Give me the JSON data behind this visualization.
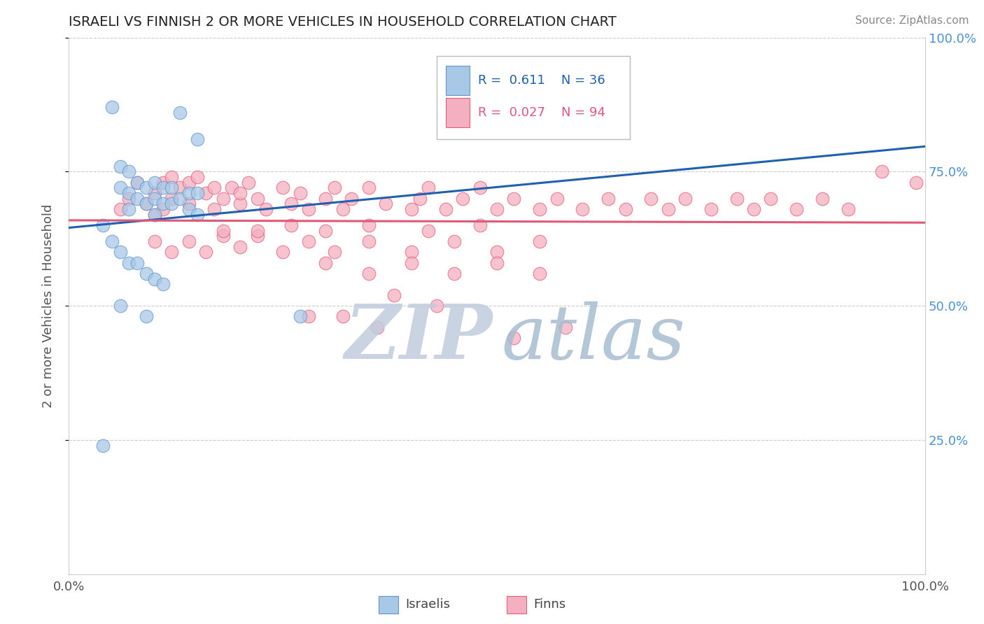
{
  "title": "ISRAELI VS FINNISH 2 OR MORE VEHICLES IN HOUSEHOLD CORRELATION CHART",
  "source": "Source: ZipAtlas.com",
  "ylabel": "2 or more Vehicles in Household",
  "xlim": [
    0.0,
    1.0
  ],
  "ylim": [
    0.0,
    1.0
  ],
  "israeli_R": 0.611,
  "israeli_N": 36,
  "finnish_R": 0.027,
  "finnish_N": 94,
  "israeli_color": "#a8c8e8",
  "finnish_color": "#f4afc0",
  "israeli_edge_color": "#6098c8",
  "finnish_edge_color": "#e06080",
  "israeli_line_color": "#2060b0",
  "finnish_line_color": "#e05878",
  "grid_color": "#cccccc",
  "right_label_color": "#4a90d9",
  "watermark_zip_color": "#c0ccdc",
  "watermark_atlas_color": "#a8bcd0",
  "title_color": "#222222",
  "source_color": "#888888",
  "tick_color": "#555555",
  "ylabel_color": "#555555",
  "legend_edge_color": "#bbbbbb",
  "israeli_x": [
    0.05,
    0.13,
    0.15,
    0.06,
    0.06,
    0.07,
    0.07,
    0.07,
    0.08,
    0.08,
    0.09,
    0.09,
    0.1,
    0.1,
    0.1,
    0.11,
    0.11,
    0.12,
    0.12,
    0.13,
    0.14,
    0.14,
    0.15,
    0.15,
    0.04,
    0.05,
    0.06,
    0.07,
    0.08,
    0.09,
    0.1,
    0.11,
    0.27,
    0.06,
    0.09,
    0.04
  ],
  "israeli_y": [
    0.87,
    0.86,
    0.81,
    0.76,
    0.72,
    0.75,
    0.71,
    0.68,
    0.73,
    0.7,
    0.72,
    0.69,
    0.73,
    0.7,
    0.67,
    0.72,
    0.69,
    0.72,
    0.69,
    0.7,
    0.71,
    0.68,
    0.71,
    0.67,
    0.65,
    0.62,
    0.6,
    0.58,
    0.58,
    0.56,
    0.55,
    0.54,
    0.48,
    0.5,
    0.48,
    0.24
  ],
  "finnish_x": [
    0.06,
    0.07,
    0.08,
    0.09,
    0.1,
    0.1,
    0.11,
    0.11,
    0.12,
    0.12,
    0.13,
    0.14,
    0.14,
    0.15,
    0.16,
    0.17,
    0.17,
    0.18,
    0.19,
    0.2,
    0.2,
    0.21,
    0.22,
    0.23,
    0.25,
    0.26,
    0.27,
    0.28,
    0.3,
    0.31,
    0.32,
    0.33,
    0.35,
    0.37,
    0.4,
    0.41,
    0.42,
    0.44,
    0.46,
    0.48,
    0.5,
    0.52,
    0.55,
    0.57,
    0.6,
    0.63,
    0.65,
    0.68,
    0.7,
    0.72,
    0.75,
    0.78,
    0.8,
    0.82,
    0.85,
    0.88,
    0.91,
    0.95,
    0.99,
    0.1,
    0.12,
    0.14,
    0.16,
    0.18,
    0.2,
    0.22,
    0.25,
    0.28,
    0.31,
    0.35,
    0.4,
    0.45,
    0.5,
    0.55,
    0.3,
    0.35,
    0.4,
    0.45,
    0.5,
    0.55,
    0.18,
    0.22,
    0.26,
    0.3,
    0.35,
    0.42,
    0.48,
    0.38,
    0.43,
    0.28,
    0.32,
    0.36,
    0.52,
    0.58
  ],
  "finnish_y": [
    0.68,
    0.7,
    0.73,
    0.69,
    0.71,
    0.67,
    0.73,
    0.68,
    0.74,
    0.7,
    0.72,
    0.73,
    0.69,
    0.74,
    0.71,
    0.72,
    0.68,
    0.7,
    0.72,
    0.69,
    0.71,
    0.73,
    0.7,
    0.68,
    0.72,
    0.69,
    0.71,
    0.68,
    0.7,
    0.72,
    0.68,
    0.7,
    0.72,
    0.69,
    0.68,
    0.7,
    0.72,
    0.68,
    0.7,
    0.72,
    0.68,
    0.7,
    0.68,
    0.7,
    0.68,
    0.7,
    0.68,
    0.7,
    0.68,
    0.7,
    0.68,
    0.7,
    0.68,
    0.7,
    0.68,
    0.7,
    0.68,
    0.75,
    0.73,
    0.62,
    0.6,
    0.62,
    0.6,
    0.63,
    0.61,
    0.63,
    0.6,
    0.62,
    0.6,
    0.62,
    0.6,
    0.62,
    0.6,
    0.62,
    0.58,
    0.56,
    0.58,
    0.56,
    0.58,
    0.56,
    0.64,
    0.64,
    0.65,
    0.64,
    0.65,
    0.64,
    0.65,
    0.52,
    0.5,
    0.48,
    0.48,
    0.46,
    0.44,
    0.46
  ]
}
